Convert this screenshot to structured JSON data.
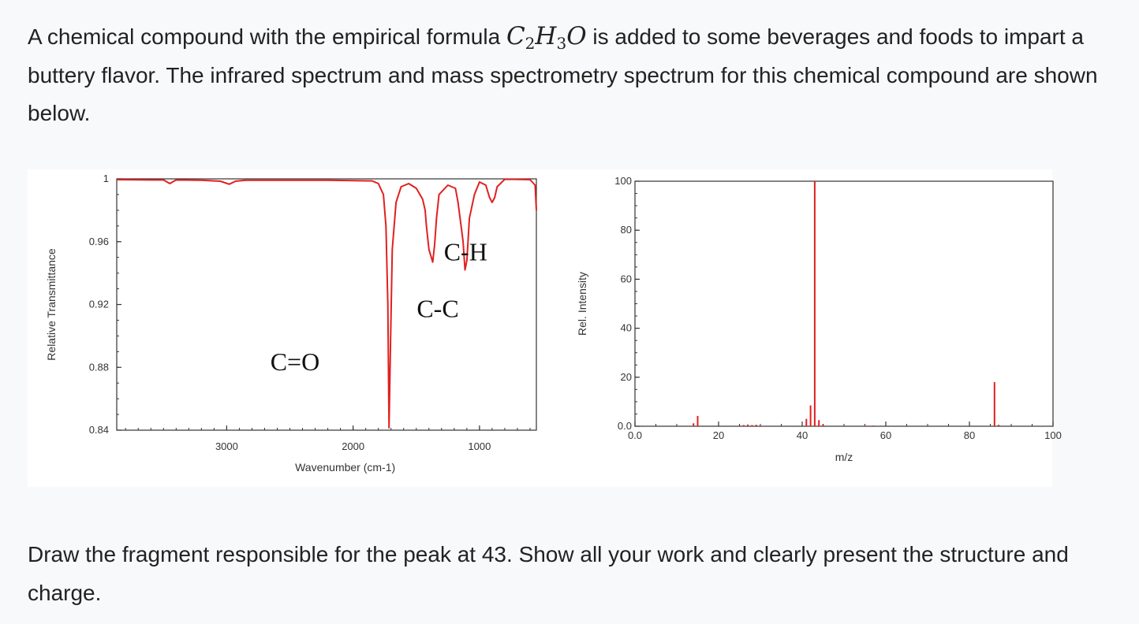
{
  "intro": {
    "before": "A chemical compound with the empirical formula ",
    "formula": {
      "c": "C",
      "c_sub": "2",
      "h": "H",
      "h_sub": "3",
      "o": "O"
    },
    "after": " is added to some beverages and foods to impart a buttery flavor.  The infrared spectrum and mass spectrometry spectrum for this chemical compound are shown below."
  },
  "question": "Draw the fragment responsible for the peak at 43. Show all your work and clearly present the structure and charge.",
  "colors": {
    "spectrum": "#e02020",
    "axis": "#333333",
    "text": "#222222"
  },
  "chart_data": [
    {
      "type": "line",
      "xlabel": "Wavenumber (cm-1)",
      "ylabel": "Relative Transmittance",
      "xlim": [
        3870,
        550
      ],
      "ylim": [
        0.84,
        1.0
      ],
      "xticks": [
        3000,
        2000,
        1000
      ],
      "xtick_labels": [
        "3000",
        "2000",
        "1000"
      ],
      "yticks": [
        1.0,
        0.96,
        0.92,
        0.88,
        0.84
      ],
      "ytick_labels": [
        "1",
        "0.96",
        "0.92",
        "0.88",
        "0.84"
      ],
      "series": [
        {
          "x": [
            3870,
            3600,
            3500,
            3450,
            3400,
            3200,
            3050,
            2980,
            2930,
            2850,
            2600,
            2200,
            1850,
            1800,
            1760,
            1740,
            1725,
            1716,
            1705,
            1690,
            1660,
            1620,
            1560,
            1500,
            1450,
            1430,
            1420,
            1400,
            1370,
            1355,
            1340,
            1320,
            1250,
            1190,
            1170,
            1130,
            1115,
            1100,
            1080,
            1040,
            1000,
            950,
            920,
            900,
            880,
            860,
            800,
            720,
            600,
            560,
            550
          ],
          "y": [
            0.9995,
            0.9993,
            0.9993,
            0.997,
            0.9993,
            0.9991,
            0.9985,
            0.9966,
            0.9985,
            0.9991,
            0.9991,
            0.9991,
            0.9987,
            0.997,
            0.99,
            0.97,
            0.92,
            0.8415,
            0.89,
            0.955,
            0.985,
            0.995,
            0.997,
            0.994,
            0.987,
            0.98,
            0.97,
            0.955,
            0.947,
            0.958,
            0.975,
            0.99,
            0.996,
            0.994,
            0.985,
            0.96,
            0.942,
            0.948,
            0.975,
            0.99,
            0.998,
            0.996,
            0.988,
            0.985,
            0.988,
            0.995,
            0.9997,
            0.9997,
            0.9995,
            0.996,
            0.98
          ]
        }
      ],
      "annotations": [
        {
          "text": "C=O",
          "x": 2460,
          "y": 0.878
        },
        {
          "text": "C-C",
          "x": 1330,
          "y": 0.912
        },
        {
          "text": "C-H",
          "x": 1110,
          "y": 0.948
        }
      ]
    },
    {
      "type": "bar",
      "xlabel": "m/z",
      "ylabel": "Rel. Intensity",
      "xlim": [
        0,
        100
      ],
      "ylim": [
        0,
        100
      ],
      "xticks": [
        0,
        20,
        40,
        60,
        80,
        100
      ],
      "xtick_labels": [
        "0.0",
        "20",
        "40",
        "60",
        "80",
        "100"
      ],
      "yticks": [
        0,
        20,
        40,
        60,
        80,
        100
      ],
      "ytick_labels": [
        "0.0",
        "20",
        "40",
        "60",
        "80",
        "100"
      ],
      "x": [
        14,
        15,
        26,
        27,
        28,
        29,
        41,
        42,
        43,
        44,
        45,
        55,
        57,
        86,
        87
      ],
      "values": [
        1.2,
        4.2,
        0.5,
        0.7,
        0.5,
        0.6,
        3.0,
        8.5,
        100,
        2.5,
        0.8,
        0.3,
        0.3,
        18,
        0.6
      ]
    }
  ]
}
